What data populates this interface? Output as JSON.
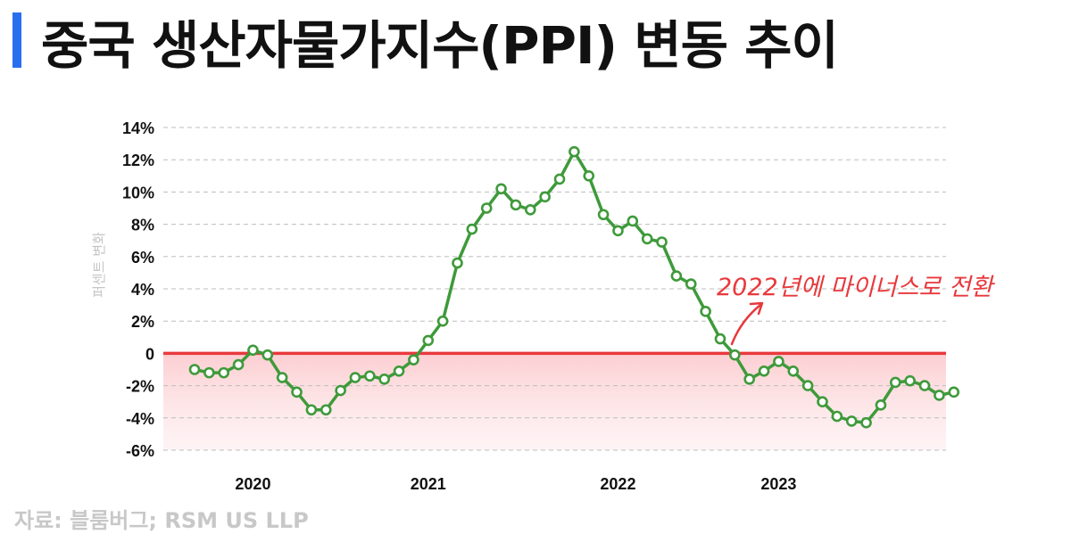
{
  "title": "중국 생산자물가지수(PPI) 변동 추이",
  "source": "자료: 블룸버그; RSM US LLP",
  "colors": {
    "accent_bar": "#2a6ef0",
    "line": "#3e9a3a",
    "zero_line": "#e8393d",
    "negative_fill": "#fdd7da"
  },
  "chart_data": {
    "type": "line",
    "title": "중국 생산자물가지수(PPI) 변동 추이",
    "ylabel": "퍼센트 변화",
    "xlabel": "",
    "ylim": [
      -6,
      14
    ],
    "yticks": [
      14,
      12,
      10,
      8,
      6,
      4,
      2,
      0,
      -2,
      -4,
      -6
    ],
    "ytick_labels": [
      "14%",
      "12%",
      "10%",
      "8%",
      "6%",
      "4%",
      "2%",
      "0",
      "-2%",
      "-4%",
      "-6%"
    ],
    "xtick_labels": [
      "2020",
      "2021",
      "2022",
      "2023"
    ],
    "xtick_index": [
      4,
      16,
      29,
      40
    ],
    "grid": "horizontal dashed",
    "negative_region_shaded": true,
    "annotation": "2022년에 마이너스로 전환",
    "series": [
      {
        "values": [
          -1.0,
          -1.2,
          -1.2,
          -0.7,
          0.2,
          -0.1,
          -1.5,
          -2.4,
          -3.5,
          -3.5,
          -2.3,
          -1.5,
          -1.4,
          -1.6,
          -1.1,
          -0.4,
          0.8,
          2.0,
          5.6,
          7.7,
          9.0,
          10.2,
          9.2,
          8.9,
          9.7,
          10.8,
          12.5,
          11.0,
          8.6,
          7.6,
          8.2,
          7.1,
          6.9,
          4.8,
          4.3,
          2.6,
          0.9,
          -0.1,
          -1.6,
          -1.1,
          -0.5,
          -1.1,
          -2.0,
          -3.0,
          -3.9,
          -4.2,
          -4.3,
          -3.2,
          -1.8,
          -1.7,
          -2.0,
          -2.6,
          -2.4
        ]
      }
    ]
  }
}
